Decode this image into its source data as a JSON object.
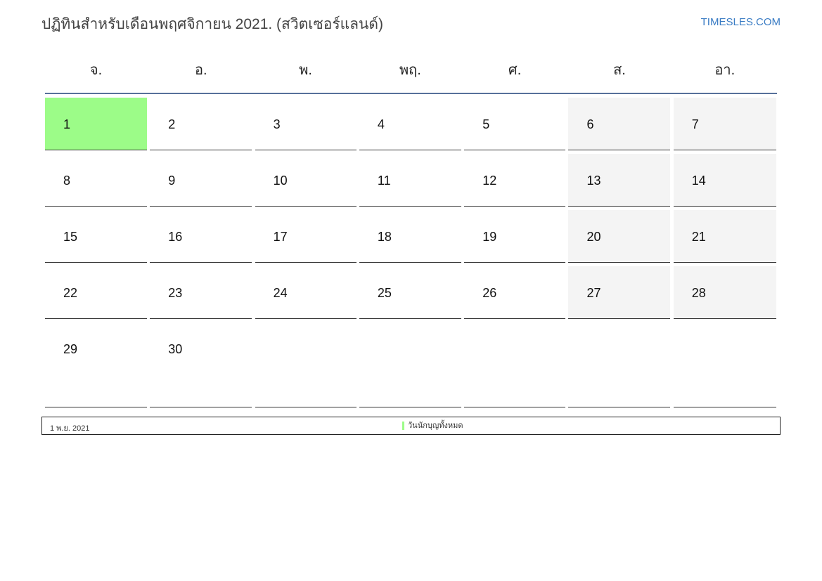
{
  "title": "ปฏิทินสำหรับเดือนพฤศจิกายน 2021. (สวิตเซอร์แลนด์)",
  "brand": "TIMESLES.COM",
  "weekdays": [
    "จ.",
    "อ.",
    "พ.",
    "พฤ.",
    "ศ.",
    "ส.",
    "อา."
  ],
  "weeks": [
    [
      "1",
      "2",
      "3",
      "4",
      "5",
      "6",
      "7"
    ],
    [
      "8",
      "9",
      "10",
      "11",
      "12",
      "13",
      "14"
    ],
    [
      "15",
      "16",
      "17",
      "18",
      "19",
      "20",
      "21"
    ],
    [
      "22",
      "23",
      "24",
      "25",
      "26",
      "27",
      "28"
    ],
    [
      "29",
      "30",
      "",
      "",
      "",
      "",
      ""
    ]
  ],
  "holidays": [
    "1"
  ],
  "colors": {
    "holiday": "#9cfc88",
    "weekend": "#f4f4f4",
    "header_line": "#56709a",
    "brand": "#3a7cc4"
  },
  "legend": {
    "date": "1 พ.ย. 2021",
    "label": "วันนักบุญทั้งหมด"
  }
}
